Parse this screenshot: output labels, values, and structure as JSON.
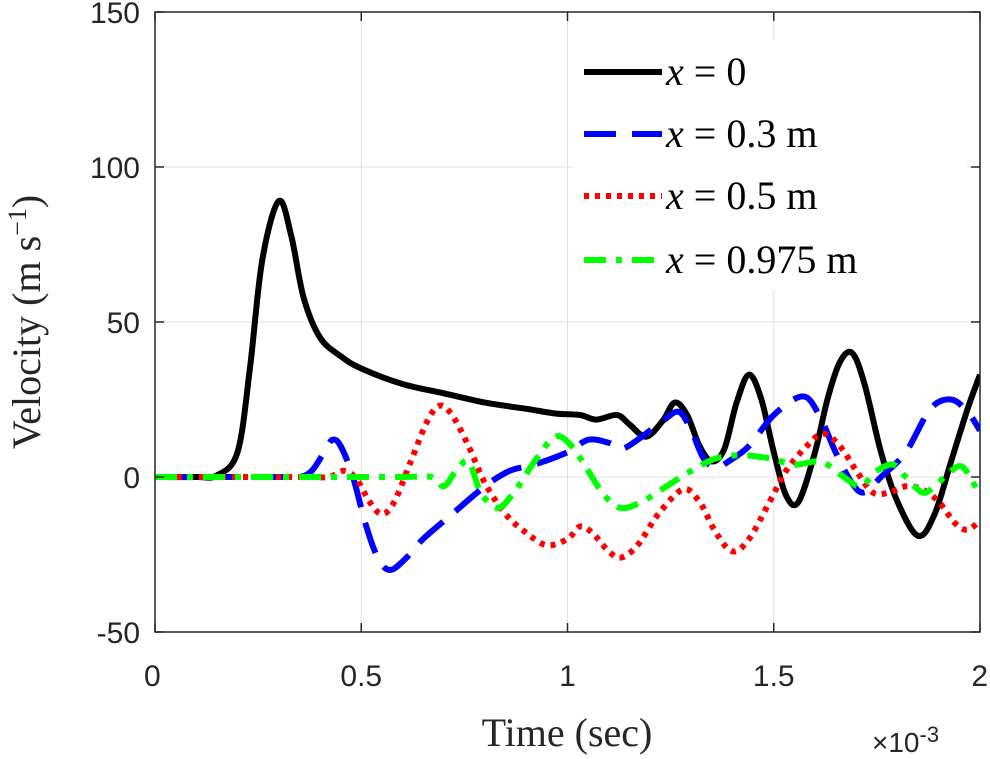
{
  "chart_data": {
    "type": "line",
    "title": "",
    "xlabel": "Time (sec)",
    "ylabel": "Velocity (m s⁻¹)",
    "ylabel_parts": {
      "main": "Velocity (m s",
      "sup": "−1",
      "close": ")"
    },
    "x_exponent_label": "×10",
    "x_exponent_power": "-3",
    "xlim": [
      0,
      2
    ],
    "ylim": [
      -50,
      150
    ],
    "grid": true,
    "legend_position": "top-right",
    "xticks": [
      0,
      0.5,
      1,
      1.5,
      2
    ],
    "xtick_labels": [
      "0",
      "0.5",
      "1",
      "1.5",
      "2"
    ],
    "yticks": [
      -50,
      0,
      50,
      100,
      150
    ],
    "ytick_labels": [
      "-50",
      "0",
      "50",
      "100",
      "150"
    ],
    "series": [
      {
        "name": "x = 0",
        "legend_var": "x",
        "legend_rest": " = 0",
        "color": "#000000",
        "style": "solid",
        "points": [
          [
            0,
            0
          ],
          [
            0.1,
            0
          ],
          [
            0.15,
            0.5
          ],
          [
            0.2,
            8
          ],
          [
            0.23,
            35
          ],
          [
            0.26,
            70
          ],
          [
            0.3,
            89
          ],
          [
            0.33,
            78
          ],
          [
            0.36,
            58
          ],
          [
            0.4,
            45
          ],
          [
            0.45,
            39
          ],
          [
            0.5,
            35
          ],
          [
            0.6,
            30
          ],
          [
            0.7,
            27
          ],
          [
            0.8,
            24
          ],
          [
            0.9,
            22
          ],
          [
            0.97,
            20.5
          ],
          [
            1.03,
            20
          ],
          [
            1.07,
            18.5
          ],
          [
            1.12,
            20
          ],
          [
            1.15,
            17
          ],
          [
            1.19,
            13
          ],
          [
            1.23,
            18
          ],
          [
            1.26,
            24
          ],
          [
            1.29,
            20
          ],
          [
            1.32,
            10
          ],
          [
            1.35,
            5
          ],
          [
            1.38,
            9
          ],
          [
            1.41,
            24
          ],
          [
            1.44,
            33
          ],
          [
            1.47,
            25
          ],
          [
            1.5,
            8
          ],
          [
            1.53,
            -6
          ],
          [
            1.56,
            -8
          ],
          [
            1.6,
            8
          ],
          [
            1.63,
            25
          ],
          [
            1.66,
            37
          ],
          [
            1.69,
            40
          ],
          [
            1.72,
            30
          ],
          [
            1.76,
            8
          ],
          [
            1.8,
            -8
          ],
          [
            1.85,
            -19
          ],
          [
            1.89,
            -12
          ],
          [
            1.93,
            5
          ],
          [
            1.97,
            22
          ],
          [
            2.0,
            33
          ]
        ]
      },
      {
        "name": "x = 0.3 m",
        "legend_var": "x",
        "legend_rest": " = 0.3 m",
        "color": "#0000ff",
        "style": "dashed",
        "points": [
          [
            0,
            0
          ],
          [
            0.3,
            0
          ],
          [
            0.35,
            0
          ],
          [
            0.38,
            2
          ],
          [
            0.41,
            8
          ],
          [
            0.43,
            12
          ],
          [
            0.45,
            10
          ],
          [
            0.48,
            0
          ],
          [
            0.51,
            -15
          ],
          [
            0.54,
            -26
          ],
          [
            0.57,
            -30
          ],
          [
            0.61,
            -26
          ],
          [
            0.65,
            -20
          ],
          [
            0.72,
            -12
          ],
          [
            0.8,
            -3
          ],
          [
            0.86,
            2
          ],
          [
            0.92,
            4
          ],
          [
            1.0,
            8
          ],
          [
            1.05,
            12
          ],
          [
            1.1,
            11
          ],
          [
            1.13,
            9
          ],
          [
            1.17,
            12
          ],
          [
            1.23,
            18
          ],
          [
            1.27,
            21
          ],
          [
            1.3,
            15
          ],
          [
            1.33,
            6
          ],
          [
            1.36,
            3
          ],
          [
            1.39,
            5
          ],
          [
            1.44,
            10
          ],
          [
            1.5,
            20
          ],
          [
            1.57,
            26
          ],
          [
            1.61,
            20
          ],
          [
            1.65,
            8
          ],
          [
            1.69,
            -2
          ],
          [
            1.72,
            -5
          ],
          [
            1.76,
            0
          ],
          [
            1.82,
            8
          ],
          [
            1.88,
            22
          ],
          [
            1.93,
            25
          ],
          [
            1.97,
            21
          ],
          [
            2.0,
            15
          ]
        ]
      },
      {
        "name": "x = 0.5 m",
        "legend_var": "x",
        "legend_rest": " = 0.5 m",
        "color": "#ff0000",
        "style": "dotted",
        "points": [
          [
            0,
            0
          ],
          [
            0.35,
            0
          ],
          [
            0.42,
            0
          ],
          [
            0.46,
            2
          ],
          [
            0.49,
            -1
          ],
          [
            0.52,
            -8
          ],
          [
            0.55,
            -12
          ],
          [
            0.58,
            -8
          ],
          [
            0.62,
            5
          ],
          [
            0.66,
            18
          ],
          [
            0.69,
            23
          ],
          [
            0.72,
            20
          ],
          [
            0.76,
            10
          ],
          [
            0.8,
            -2
          ],
          [
            0.85,
            -12
          ],
          [
            0.9,
            -18
          ],
          [
            0.95,
            -22
          ],
          [
            1.0,
            -20
          ],
          [
            1.03,
            -16
          ],
          [
            1.06,
            -18
          ],
          [
            1.1,
            -24
          ],
          [
            1.13,
            -26
          ],
          [
            1.17,
            -22
          ],
          [
            1.22,
            -12
          ],
          [
            1.28,
            -4
          ],
          [
            1.32,
            -8
          ],
          [
            1.36,
            -18
          ],
          [
            1.4,
            -24
          ],
          [
            1.44,
            -20
          ],
          [
            1.49,
            -8
          ],
          [
            1.53,
            2
          ],
          [
            1.58,
            10
          ],
          [
            1.62,
            14
          ],
          [
            1.66,
            10
          ],
          [
            1.7,
            2
          ],
          [
            1.74,
            -5
          ],
          [
            1.78,
            -5
          ],
          [
            1.82,
            -3
          ],
          [
            1.86,
            -4
          ],
          [
            1.9,
            -8
          ],
          [
            1.94,
            -15
          ],
          [
            1.97,
            -17
          ],
          [
            2.0,
            -14
          ]
        ]
      },
      {
        "name": "x = 0.975 m",
        "legend_var": "x",
        "legend_rest": " = 0.975 m",
        "color": "#00ff00",
        "style": "dashdot",
        "points": [
          [
            0,
            0
          ],
          [
            0.4,
            0
          ],
          [
            0.6,
            0
          ],
          [
            0.67,
            0
          ],
          [
            0.7,
            -3
          ],
          [
            0.73,
            2
          ],
          [
            0.76,
            5
          ],
          [
            0.79,
            -5
          ],
          [
            0.83,
            -10
          ],
          [
            0.87,
            -5
          ],
          [
            0.92,
            5
          ],
          [
            0.97,
            13
          ],
          [
            1.01,
            10
          ],
          [
            1.05,
            2
          ],
          [
            1.09,
            -6
          ],
          [
            1.13,
            -10
          ],
          [
            1.18,
            -8
          ],
          [
            1.24,
            -3
          ],
          [
            1.3,
            2
          ],
          [
            1.36,
            6
          ],
          [
            1.42,
            7
          ],
          [
            1.49,
            6
          ],
          [
            1.55,
            4
          ],
          [
            1.6,
            5
          ],
          [
            1.63,
            4
          ],
          [
            1.67,
            0
          ],
          [
            1.71,
            -3
          ],
          [
            1.75,
            2
          ],
          [
            1.79,
            4
          ],
          [
            1.82,
            0
          ],
          [
            1.86,
            -5
          ],
          [
            1.89,
            -3
          ],
          [
            1.93,
            2
          ],
          [
            1.96,
            3
          ],
          [
            2.0,
            -6
          ]
        ]
      }
    ]
  }
}
